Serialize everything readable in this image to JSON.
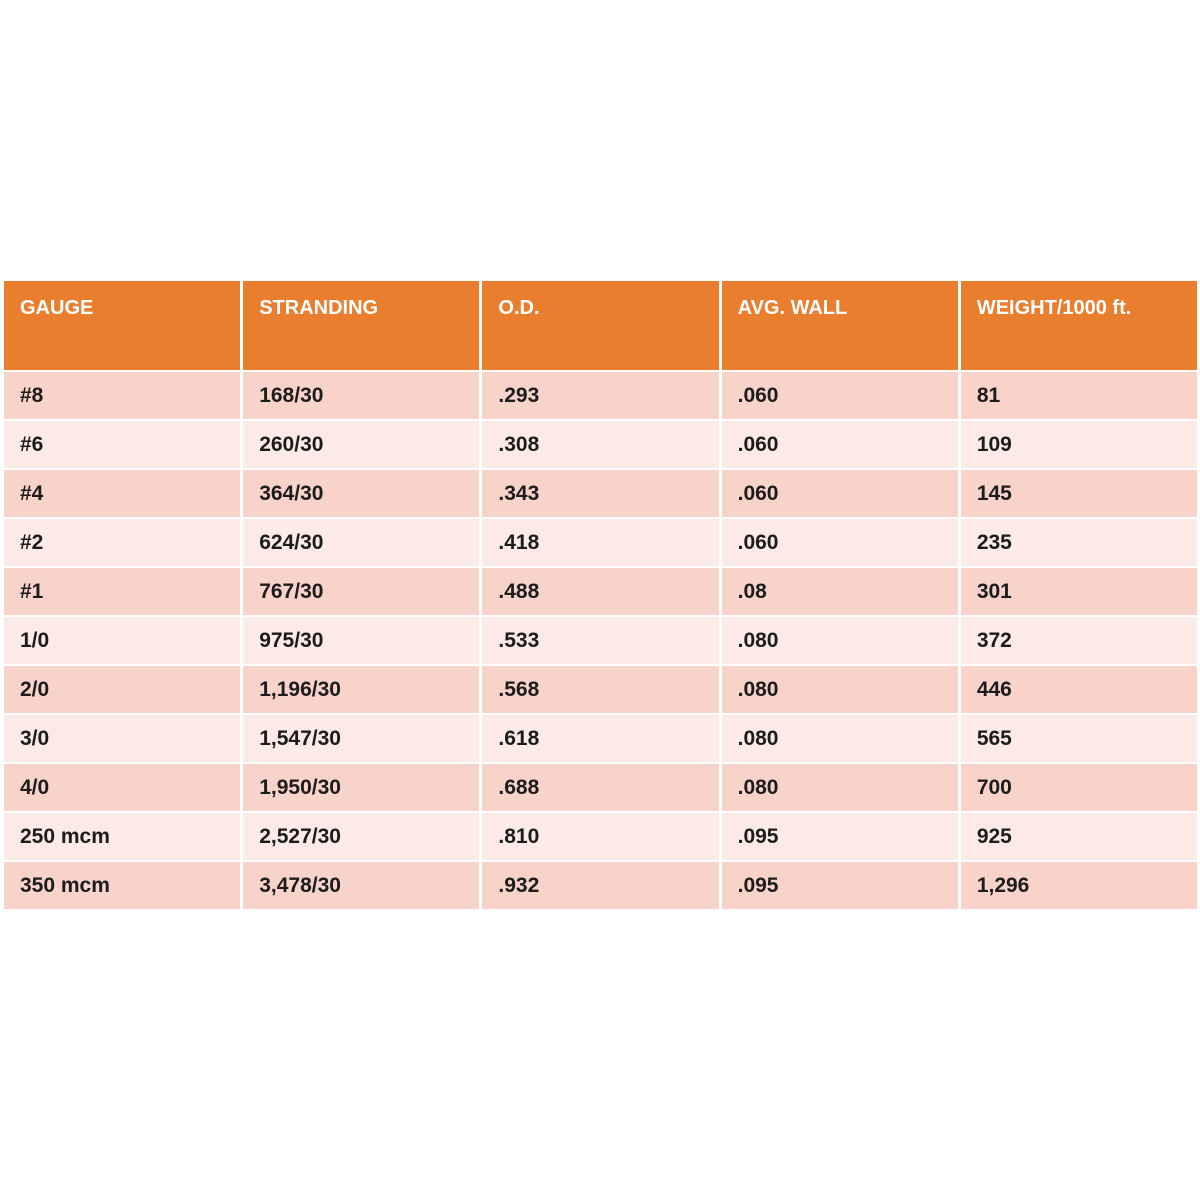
{
  "page": {
    "background": "#FFFFFF"
  },
  "colors": {
    "header_bg": "#E87E2E",
    "header_text": "#FFFFFF",
    "row_dark": "#F8D3C9",
    "row_light": "#FBEAE5",
    "divider": "#FFFFFF",
    "cell_text": "#1C1C1C"
  },
  "chart_data": {
    "type": "table",
    "columns": [
      "GAUGE",
      "STRANDING",
      "O.D.",
      "AVG. WALL",
      "WEIGHT/1000 ft."
    ],
    "rows": [
      [
        "#8",
        "168/30",
        ".293",
        ".060",
        "81"
      ],
      [
        "#6",
        "260/30",
        ".308",
        ".060",
        "109"
      ],
      [
        "#4",
        "364/30",
        ".343",
        ".060",
        "145"
      ],
      [
        "#2",
        "624/30",
        ".418",
        ".060",
        "235"
      ],
      [
        "#1",
        "767/30",
        ".488",
        ".08",
        "301"
      ],
      [
        "1/0",
        "975/30",
        ".533",
        ".080",
        "372"
      ],
      [
        "2/0",
        "1,196/30",
        ".568",
        ".080",
        "446"
      ],
      [
        "3/0",
        "1,547/30",
        ".618",
        ".080",
        "565"
      ],
      [
        "4/0",
        "1,950/30",
        ".688",
        ".080",
        "700"
      ],
      [
        "250 mcm",
        "2,527/30",
        ".810",
        ".095",
        "925"
      ],
      [
        "350 mcm",
        "3,478/30",
        ".932",
        ".095",
        "1,296"
      ]
    ],
    "layout": {
      "banded_rows": true,
      "first_band": "dark",
      "column_count": 5
    }
  }
}
